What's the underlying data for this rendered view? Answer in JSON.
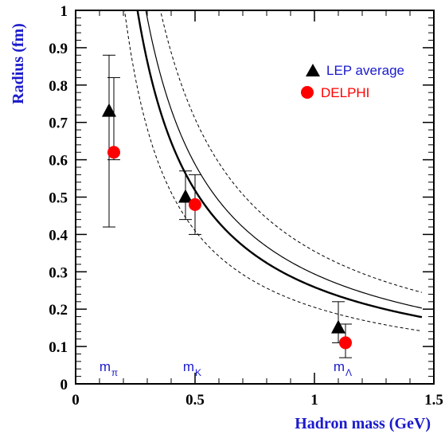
{
  "chart_data": {
    "type": "scatter",
    "xlabel": "Hadron mass (GeV)",
    "ylabel": "Radius (fm)",
    "xlim": [
      0,
      1.5
    ],
    "ylim": [
      0,
      1
    ],
    "x_ticks": [
      "0",
      "0.5",
      "1",
      "1.5"
    ],
    "y_ticks": [
      "0",
      "0.1",
      "0.2",
      "0.3",
      "0.4",
      "0.5",
      "0.6",
      "0.7",
      "0.8",
      "0.9",
      "1"
    ],
    "series": [
      {
        "name": "LEP average",
        "marker": "triangle",
        "color": "#000000",
        "points": [
          {
            "x": 0.14,
            "y": 0.73,
            "ylow": 0.42,
            "yhigh": 0.88
          },
          {
            "x": 0.46,
            "y": 0.5,
            "ylow": 0.44,
            "yhigh": 0.57
          },
          {
            "x": 1.1,
            "y": 0.15,
            "ylow": 0.11,
            "yhigh": 0.22
          }
        ]
      },
      {
        "name": "DELPHI",
        "marker": "circle",
        "color": "#ff0000",
        "points": [
          {
            "x": 0.16,
            "y": 0.62,
            "ylow": 0.6,
            "yhigh": 0.82
          },
          {
            "x": 0.5,
            "y": 0.48,
            "ylow": 0.4,
            "yhigh": 0.56
          },
          {
            "x": 1.13,
            "y": 0.11,
            "ylow": 0.07,
            "yhigh": 0.16
          }
        ]
      }
    ],
    "curves": [
      {
        "style": "solid-thick",
        "color": "#000000",
        "k": 0.259
      },
      {
        "style": "solid-thin",
        "color": "#000000",
        "k": 0.294
      },
      {
        "style": "dashed-upper",
        "color": "#000000",
        "k": 0.355
      },
      {
        "style": "dashed-lower",
        "color": "#000000",
        "k": 0.205
      }
    ],
    "mass_markers": [
      {
        "label": "m",
        "sub": "π",
        "x": 0.14
      },
      {
        "label": "m",
        "sub": "K",
        "x": 0.49
      },
      {
        "label": "m",
        "sub": "Λ",
        "x": 1.12
      }
    ],
    "legend": {
      "placement": "top-right"
    }
  }
}
